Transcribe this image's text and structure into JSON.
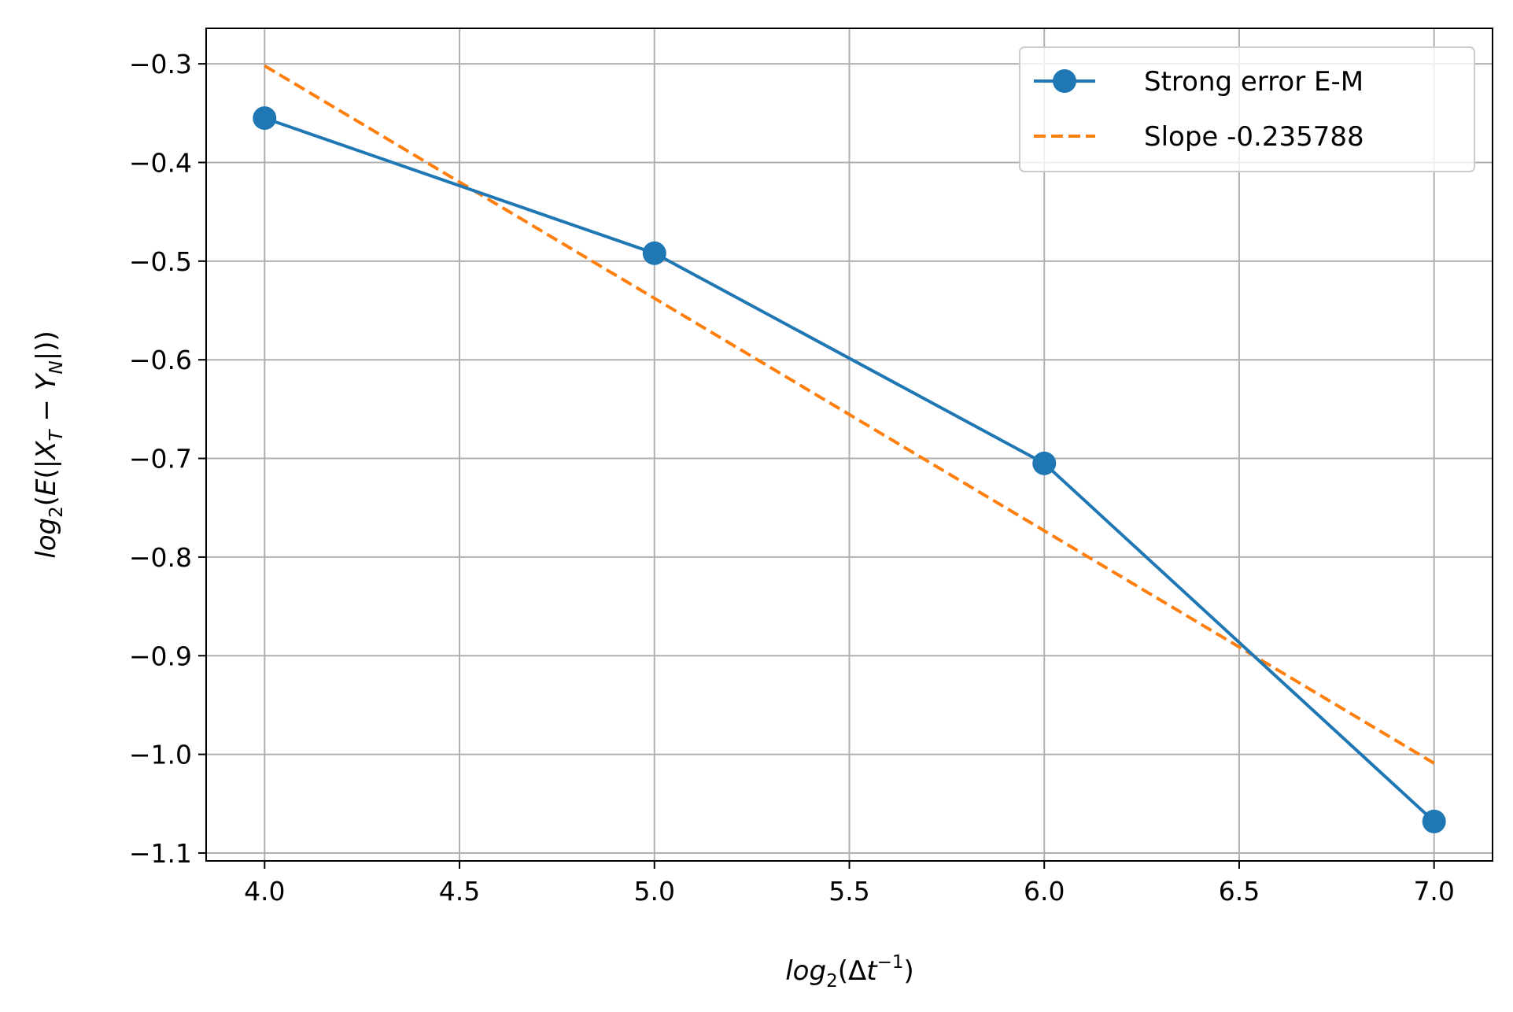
{
  "chart_data": {
    "type": "line",
    "title": "",
    "xlabel": {
      "base": "log",
      "sub": "2",
      "open": "(Δ",
      "var": "t",
      "sup": "−1",
      "close": ")"
    },
    "ylabel": {
      "base": "log",
      "sub": "2",
      "open": "(",
      "e": "E",
      "mid1": "(|",
      "x": "X",
      "xsub": "T",
      "minus": " − ",
      "y": "Y",
      "ysub": "N",
      "close": "|))"
    },
    "xlim": [
      3.85,
      7.15
    ],
    "ylim": [
      -1.108,
      -0.264
    ],
    "xticks": [
      4.0,
      4.5,
      5.0,
      5.5,
      6.0,
      6.5,
      7.0
    ],
    "xtick_labels": [
      "4.0",
      "4.5",
      "5.0",
      "5.5",
      "6.0",
      "6.5",
      "7.0"
    ],
    "yticks": [
      -0.3,
      -0.4,
      -0.5,
      -0.6,
      -0.7,
      -0.8,
      -0.9,
      -1.0,
      -1.1
    ],
    "ytick_labels": [
      "−0.3",
      "−0.4",
      "−0.5",
      "−0.6",
      "−0.7",
      "−0.8",
      "−0.9",
      "−1.0",
      "−1.1"
    ],
    "grid": true,
    "legend_position": "top-right",
    "series": [
      {
        "name": "Strong error E-M",
        "color": "#1f77b4",
        "style": "solid",
        "marker": "circle",
        "x": [
          4.0,
          5.0,
          6.0,
          7.0
        ],
        "y": [
          -0.355,
          -0.492,
          -0.705,
          -1.068
        ]
      },
      {
        "name": "Slope -0.235788",
        "color": "#ff7f0e",
        "style": "dashed",
        "marker": "none",
        "x": [
          4.0,
          7.0
        ],
        "y": [
          -0.302,
          -1.009
        ]
      }
    ]
  }
}
